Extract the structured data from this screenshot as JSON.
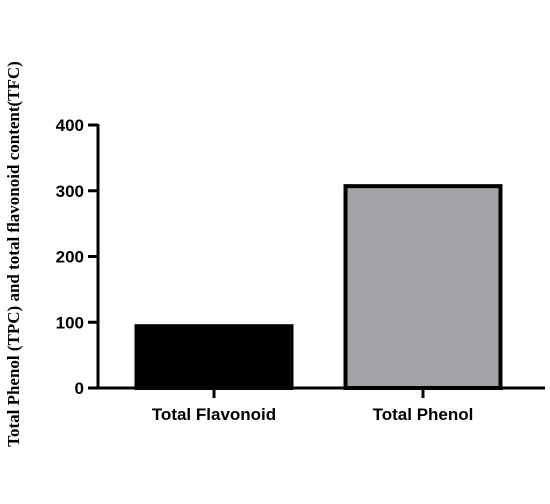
{
  "chart_data": {
    "type": "bar",
    "title": "",
    "xlabel": "",
    "ylabel": "Total Phenol (TPC) and total flavonoid content(TFC)",
    "categories": [
      "Total Flavonoid",
      "Total Phenol"
    ],
    "values": [
      94,
      307
    ],
    "bar_colors": [
      "#000000",
      "#a3a2a7"
    ],
    "bar_edge_color": "#000000",
    "ylim": [
      0,
      400
    ],
    "yticks": [
      0,
      100,
      200,
      300,
      400
    ],
    "ytick_labels": [
      "0",
      "100",
      "200",
      "300",
      "400"
    ],
    "grid": false,
    "legend": "none"
  }
}
